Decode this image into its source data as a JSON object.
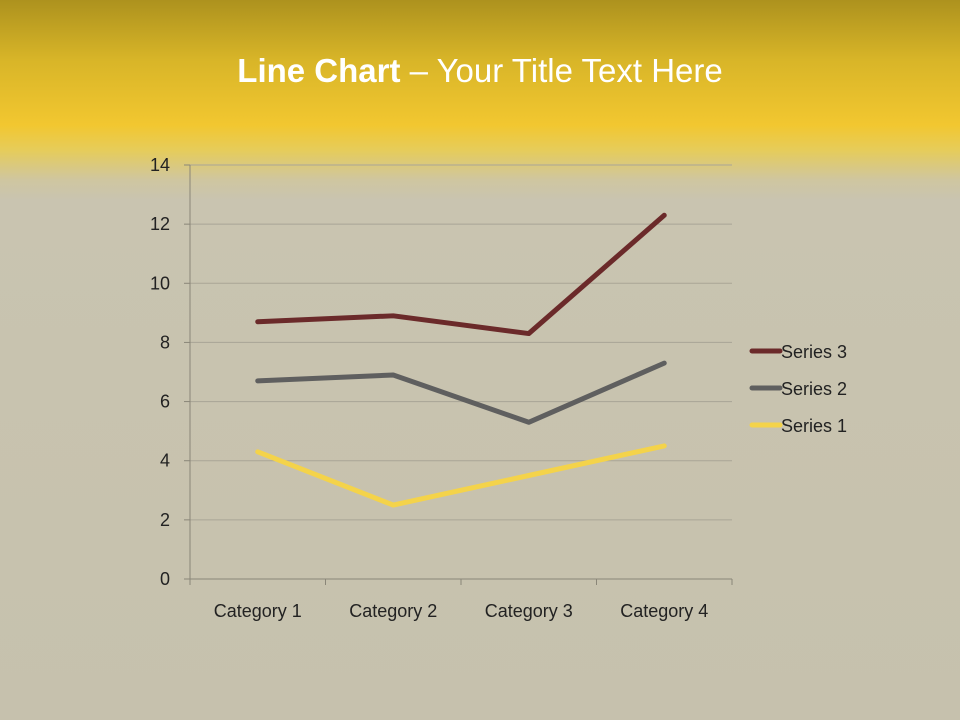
{
  "title": {
    "bold": "Line Chart",
    "rest": " – Your Title Text Here"
  },
  "chart_data": {
    "type": "line",
    "stacked": true,
    "categories": [
      "Category 1",
      "Category 2",
      "Category 3",
      "Category 4"
    ],
    "series": [
      {
        "name": "Series 1",
        "values": [
          4.3,
          2.5,
          3.5,
          4.5
        ],
        "color": "#f4d34a"
      },
      {
        "name": "Series 2",
        "values": [
          2.4,
          4.4,
          1.8,
          2.8
        ],
        "color": "#5f5f5f"
      },
      {
        "name": "Series 3",
        "values": [
          2,
          2,
          3,
          5
        ],
        "color": "#6b2a2a"
      }
    ],
    "ylim": [
      0,
      14
    ],
    "yticks": [
      0,
      2,
      4,
      6,
      8,
      10,
      12,
      14
    ],
    "grid": true,
    "legend": "right"
  }
}
